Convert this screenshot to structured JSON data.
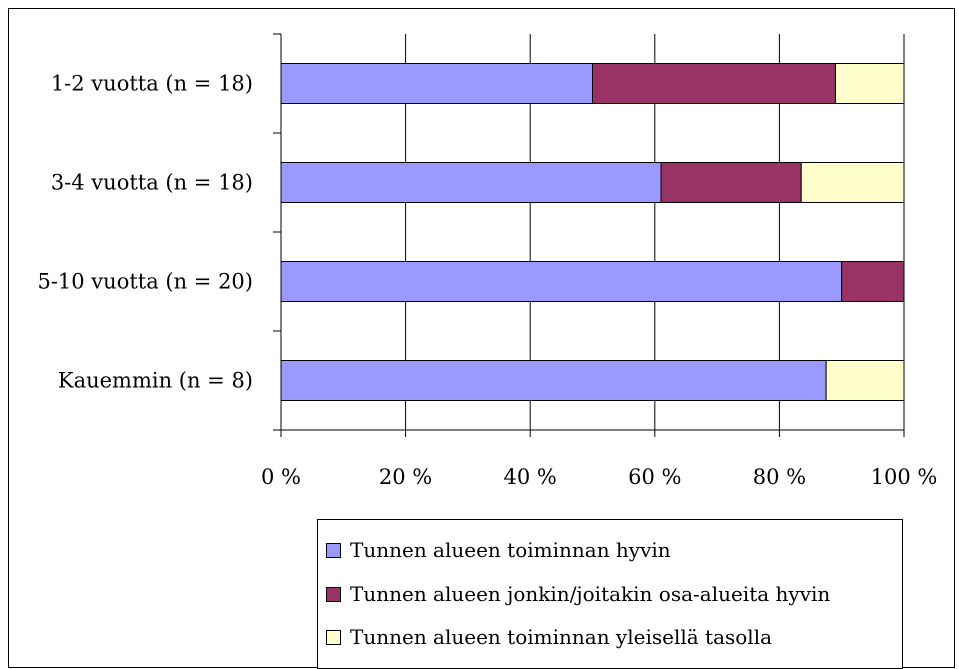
{
  "chart_data": {
    "type": "bar",
    "orientation": "horizontal",
    "stacked": "percent",
    "categories": [
      "1-2 vuotta (n = 18)",
      "3-4 vuotta (n = 18)",
      "5-10 vuotta (n = 20)",
      "Kauemmin (n = 8)"
    ],
    "series": [
      {
        "name": "Tunnen alueen toiminnan hyvin",
        "color": "#9999ff",
        "values": [
          50,
          61,
          90,
          87.5
        ]
      },
      {
        "name": "Tunnen alueen jonkin/joitakin osa-alueita hyvin",
        "color": "#993366",
        "values": [
          39,
          22.5,
          10,
          0
        ]
      },
      {
        "name": "Tunnen alueen toiminnan yleisellä tasolla",
        "color": "#ffffcc",
        "values": [
          11,
          16.5,
          0,
          12.5
        ]
      }
    ],
    "xticks": [
      "0 %",
      "20 %",
      "40 %",
      "60 %",
      "80 %",
      "100 %"
    ],
    "xlim": [
      0,
      100
    ],
    "grid": true,
    "legend_position": "bottom"
  }
}
